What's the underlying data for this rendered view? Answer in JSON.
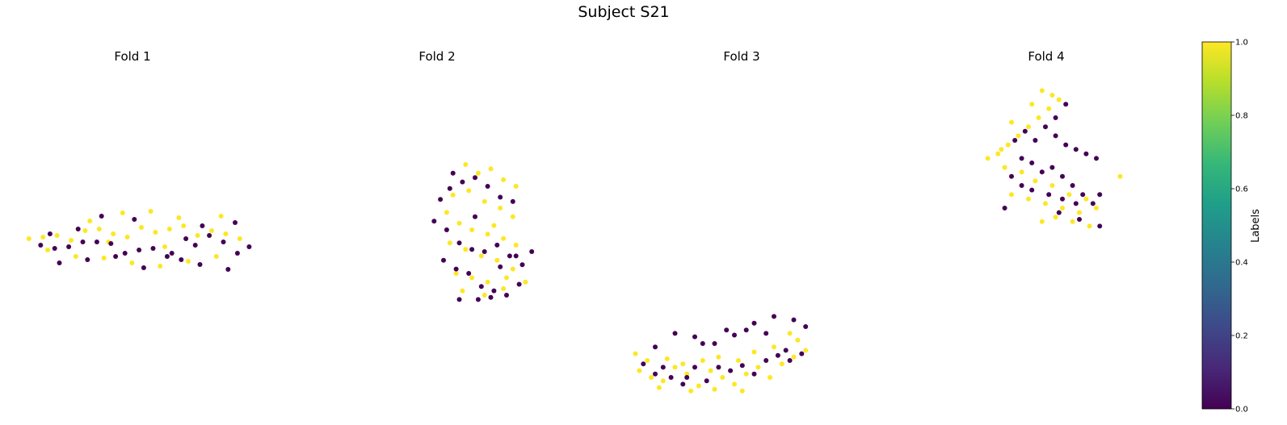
{
  "figure": {
    "suptitle": "Subject S21"
  },
  "colors": {
    "label_0": "#440154",
    "label_1": "#fde725",
    "viridis": [
      "#440154",
      "#482878",
      "#3e4989",
      "#31688e",
      "#26828e",
      "#1f9e89",
      "#35b779",
      "#6ece58",
      "#b5de2b",
      "#fde725"
    ]
  },
  "colorbar": {
    "label": "Labels",
    "range": [
      0,
      1
    ],
    "ticks": [
      "0.0",
      "0.2",
      "0.4",
      "0.6",
      "0.8",
      "1.0"
    ]
  },
  "chart_data": [
    {
      "type": "scatter",
      "title": "Fold 1",
      "axes_visible": false,
      "xlim": [
        0,
        10
      ],
      "ylim": [
        0,
        10
      ],
      "points": [
        [
          0.2,
          4.7,
          1
        ],
        [
          0.8,
          4.8,
          1
        ],
        [
          1.4,
          4.9,
          1
        ],
        [
          2.0,
          4.6,
          1
        ],
        [
          2.6,
          5.2,
          1
        ],
        [
          3.2,
          5.3,
          1
        ],
        [
          3.8,
          5.0,
          1
        ],
        [
          4.4,
          4.8,
          1
        ],
        [
          5.0,
          5.4,
          1
        ],
        [
          5.6,
          5.1,
          1
        ],
        [
          6.2,
          5.3,
          1
        ],
        [
          6.8,
          5.5,
          1
        ],
        [
          7.4,
          4.9,
          1
        ],
        [
          8.0,
          5.2,
          1
        ],
        [
          8.6,
          5.0,
          1
        ],
        [
          9.2,
          4.7,
          1
        ],
        [
          1.0,
          4.0,
          1
        ],
        [
          2.2,
          3.6,
          1
        ],
        [
          3.4,
          3.5,
          1
        ],
        [
          4.6,
          3.2,
          1
        ],
        [
          5.8,
          3.0,
          1
        ],
        [
          7.0,
          3.3,
          1
        ],
        [
          8.2,
          3.6,
          1
        ],
        [
          2.8,
          5.8,
          1
        ],
        [
          4.2,
          6.3,
          1
        ],
        [
          5.4,
          6.4,
          1
        ],
        [
          6.6,
          6.0,
          1
        ],
        [
          8.4,
          6.1,
          1
        ],
        [
          3.6,
          4.5,
          1
        ],
        [
          6.0,
          4.2,
          1
        ],
        [
          0.7,
          4.3,
          0
        ],
        [
          1.3,
          4.1,
          0
        ],
        [
          1.9,
          4.2,
          0
        ],
        [
          2.5,
          4.5,
          0
        ],
        [
          3.1,
          4.5,
          0
        ],
        [
          3.7,
          4.4,
          0
        ],
        [
          4.3,
          3.8,
          0
        ],
        [
          4.9,
          4.0,
          0
        ],
        [
          5.5,
          4.1,
          0
        ],
        [
          6.1,
          3.6,
          0
        ],
        [
          6.7,
          3.4,
          0
        ],
        [
          7.3,
          4.3,
          0
        ],
        [
          7.9,
          4.9,
          0
        ],
        [
          8.5,
          4.5,
          0
        ],
        [
          9.1,
          3.8,
          0
        ],
        [
          9.6,
          4.2,
          0
        ],
        [
          1.5,
          3.2,
          0
        ],
        [
          2.7,
          3.4,
          0
        ],
        [
          3.9,
          3.6,
          0
        ],
        [
          5.1,
          2.9,
          0
        ],
        [
          6.3,
          3.8,
          0
        ],
        [
          7.5,
          3.1,
          0
        ],
        [
          8.7,
          2.8,
          0
        ],
        [
          1.1,
          5.0,
          0
        ],
        [
          2.3,
          5.3,
          0
        ],
        [
          7.6,
          5.5,
          0
        ],
        [
          6.9,
          4.7,
          0
        ],
        [
          4.7,
          5.9,
          0
        ],
        [
          9.0,
          5.7,
          0
        ],
        [
          3.3,
          6.1,
          0
        ]
      ]
    },
    {
      "type": "scatter",
      "title": "Fold 2",
      "axes_visible": false,
      "xlim": [
        0,
        10
      ],
      "ylim": [
        0,
        10
      ],
      "points": [
        [
          3.4,
          8.0,
          1
        ],
        [
          4.2,
          7.6,
          1
        ],
        [
          5.0,
          7.8,
          1
        ],
        [
          5.8,
          7.3,
          1
        ],
        [
          6.6,
          7.0,
          1
        ],
        [
          2.6,
          6.6,
          1
        ],
        [
          3.6,
          6.8,
          1
        ],
        [
          4.6,
          6.3,
          1
        ],
        [
          5.6,
          6.0,
          1
        ],
        [
          6.4,
          5.6,
          1
        ],
        [
          2.2,
          5.8,
          1
        ],
        [
          3.0,
          5.3,
          1
        ],
        [
          3.8,
          5.0,
          1
        ],
        [
          4.8,
          4.8,
          1
        ],
        [
          5.8,
          4.6,
          1
        ],
        [
          6.6,
          4.3,
          1
        ],
        [
          2.4,
          4.4,
          1
        ],
        [
          3.4,
          4.1,
          1
        ],
        [
          4.4,
          3.8,
          1
        ],
        [
          5.4,
          3.6,
          1
        ],
        [
          6.4,
          3.2,
          1
        ],
        [
          2.8,
          3.0,
          1
        ],
        [
          3.8,
          2.8,
          1
        ],
        [
          4.8,
          2.6,
          1
        ],
        [
          5.8,
          2.3,
          1
        ],
        [
          3.2,
          2.2,
          1
        ],
        [
          4.6,
          2.0,
          1
        ],
        [
          6.0,
          2.8,
          1
        ],
        [
          7.2,
          2.6,
          1
        ],
        [
          5.2,
          5.2,
          1
        ],
        [
          1.8,
          6.4,
          0
        ],
        [
          2.4,
          6.9,
          0
        ],
        [
          3.2,
          7.2,
          0
        ],
        [
          4.0,
          7.4,
          0
        ],
        [
          4.8,
          7.0,
          0
        ],
        [
          5.6,
          6.5,
          0
        ],
        [
          6.4,
          6.3,
          0
        ],
        [
          1.4,
          5.4,
          0
        ],
        [
          2.2,
          5.0,
          0
        ],
        [
          3.0,
          4.4,
          0
        ],
        [
          3.8,
          4.1,
          0
        ],
        [
          4.6,
          4.0,
          0
        ],
        [
          5.4,
          4.3,
          0
        ],
        [
          6.2,
          3.8,
          0
        ],
        [
          7.0,
          3.4,
          0
        ],
        [
          7.6,
          4.0,
          0
        ],
        [
          2.0,
          3.6,
          0
        ],
        [
          2.8,
          3.2,
          0
        ],
        [
          3.6,
          3.0,
          0
        ],
        [
          4.4,
          2.4,
          0
        ],
        [
          5.2,
          2.2,
          0
        ],
        [
          6.0,
          2.0,
          0
        ],
        [
          6.8,
          2.5,
          0
        ],
        [
          3.0,
          1.8,
          0
        ],
        [
          4.2,
          1.8,
          0
        ],
        [
          5.0,
          1.9,
          0
        ],
        [
          5.6,
          3.3,
          0
        ],
        [
          6.6,
          3.8,
          0
        ],
        [
          4.0,
          5.6,
          0
        ],
        [
          2.6,
          7.6,
          0
        ]
      ]
    },
    {
      "type": "scatter",
      "title": "Fold 3",
      "axes_visible": false,
      "xlim": [
        0,
        10
      ],
      "ylim": [
        0,
        10
      ],
      "points": [
        [
          1.2,
          2.4,
          1
        ],
        [
          1.8,
          2.0,
          1
        ],
        [
          2.4,
          1.8,
          1
        ],
        [
          3.0,
          2.6,
          1
        ],
        [
          3.6,
          2.2,
          1
        ],
        [
          4.2,
          1.5,
          1
        ],
        [
          4.8,
          2.4,
          1
        ],
        [
          5.4,
          2.0,
          1
        ],
        [
          6.0,
          1.6,
          1
        ],
        [
          6.6,
          2.2,
          1
        ],
        [
          7.2,
          2.6,
          1
        ],
        [
          7.8,
          2.0,
          1
        ],
        [
          8.4,
          2.8,
          1
        ],
        [
          9.0,
          3.2,
          1
        ],
        [
          9.6,
          3.6,
          1
        ],
        [
          1.6,
          3.0,
          1
        ],
        [
          2.6,
          3.1,
          1
        ],
        [
          3.4,
          2.8,
          1
        ],
        [
          4.4,
          3.0,
          1
        ],
        [
          5.2,
          3.2,
          1
        ],
        [
          6.2,
          3.0,
          1
        ],
        [
          7.0,
          3.5,
          1
        ],
        [
          8.0,
          3.8,
          1
        ],
        [
          9.2,
          4.2,
          1
        ],
        [
          1.0,
          3.4,
          1
        ],
        [
          2.2,
          1.4,
          1
        ],
        [
          3.8,
          1.2,
          1
        ],
        [
          5.0,
          1.3,
          1
        ],
        [
          6.4,
          1.2,
          1
        ],
        [
          8.8,
          4.6,
          1
        ],
        [
          1.4,
          2.8,
          0
        ],
        [
          2.0,
          2.2,
          0
        ],
        [
          2.8,
          2.0,
          0
        ],
        [
          3.4,
          1.6,
          0
        ],
        [
          4.0,
          2.6,
          0
        ],
        [
          4.6,
          1.8,
          0
        ],
        [
          5.2,
          2.6,
          0
        ],
        [
          5.8,
          2.4,
          0
        ],
        [
          6.4,
          2.7,
          0
        ],
        [
          7.0,
          2.2,
          0
        ],
        [
          7.6,
          3.0,
          0
        ],
        [
          8.2,
          3.3,
          0
        ],
        [
          8.8,
          3.0,
          0
        ],
        [
          9.4,
          3.4,
          0
        ],
        [
          2.0,
          3.8,
          0
        ],
        [
          3.0,
          4.6,
          0
        ],
        [
          4.0,
          4.4,
          0
        ],
        [
          5.0,
          4.0,
          0
        ],
        [
          6.0,
          4.5,
          0
        ],
        [
          7.0,
          5.2,
          0
        ],
        [
          8.0,
          5.6,
          0
        ],
        [
          9.0,
          5.4,
          0
        ],
        [
          9.6,
          5.0,
          0
        ],
        [
          4.4,
          4.0,
          0
        ],
        [
          5.6,
          4.8,
          0
        ],
        [
          6.6,
          4.8,
          0
        ],
        [
          7.6,
          4.6,
          0
        ],
        [
          2.4,
          2.6,
          0
        ],
        [
          3.6,
          2.0,
          0
        ],
        [
          8.6,
          3.6,
          0
        ]
      ]
    },
    {
      "type": "scatter",
      "title": "Fold 4",
      "axes_visible": false,
      "xlim": [
        0,
        10
      ],
      "ylim": [
        0,
        10
      ],
      "points": [
        [
          0.6,
          6.2,
          1
        ],
        [
          1.2,
          6.4,
          1
        ],
        [
          1.8,
          6.8,
          1
        ],
        [
          2.4,
          7.2,
          1
        ],
        [
          3.0,
          7.6,
          1
        ],
        [
          3.6,
          8.0,
          1
        ],
        [
          4.2,
          8.4,
          1
        ],
        [
          4.8,
          8.8,
          1
        ],
        [
          2.0,
          7.8,
          1
        ],
        [
          3.2,
          8.6,
          1
        ],
        [
          4.4,
          9.0,
          1
        ],
        [
          3.8,
          9.2,
          1
        ],
        [
          1.6,
          5.8,
          1
        ],
        [
          2.6,
          5.6,
          1
        ],
        [
          3.4,
          5.2,
          1
        ],
        [
          4.4,
          5.0,
          1
        ],
        [
          5.4,
          4.6,
          1
        ],
        [
          6.4,
          4.4,
          1
        ],
        [
          2.0,
          4.6,
          1
        ],
        [
          3.0,
          4.4,
          1
        ],
        [
          4.0,
          4.2,
          1
        ],
        [
          5.0,
          4.0,
          1
        ],
        [
          6.0,
          3.8,
          1
        ],
        [
          7.0,
          4.0,
          1
        ],
        [
          4.6,
          3.6,
          1
        ],
        [
          5.6,
          3.4,
          1
        ],
        [
          6.6,
          3.2,
          1
        ],
        [
          3.8,
          3.4,
          1
        ],
        [
          8.4,
          5.4,
          1
        ],
        [
          1.4,
          6.6,
          1
        ],
        [
          2.2,
          7.0,
          0
        ],
        [
          2.8,
          7.4,
          0
        ],
        [
          3.4,
          7.0,
          0
        ],
        [
          4.0,
          7.6,
          0
        ],
        [
          4.6,
          7.2,
          0
        ],
        [
          5.2,
          6.8,
          0
        ],
        [
          5.8,
          6.6,
          0
        ],
        [
          6.4,
          6.4,
          0
        ],
        [
          7.0,
          6.2,
          0
        ],
        [
          2.6,
          6.2,
          0
        ],
        [
          3.2,
          6.0,
          0
        ],
        [
          3.8,
          5.6,
          0
        ],
        [
          4.4,
          5.8,
          0
        ],
        [
          5.0,
          5.4,
          0
        ],
        [
          5.6,
          5.0,
          0
        ],
        [
          6.2,
          4.6,
          0
        ],
        [
          6.8,
          4.2,
          0
        ],
        [
          7.2,
          4.6,
          0
        ],
        [
          2.0,
          5.4,
          0
        ],
        [
          2.6,
          5.0,
          0
        ],
        [
          3.2,
          4.8,
          0
        ],
        [
          4.2,
          4.6,
          0
        ],
        [
          5.0,
          4.4,
          0
        ],
        [
          5.8,
          4.2,
          0
        ],
        [
          1.6,
          4.0,
          0
        ],
        [
          4.8,
          3.8,
          0
        ],
        [
          6.0,
          3.5,
          0
        ],
        [
          7.2,
          3.2,
          0
        ],
        [
          4.6,
          8.0,
          0
        ],
        [
          5.2,
          8.6,
          0
        ]
      ]
    }
  ]
}
